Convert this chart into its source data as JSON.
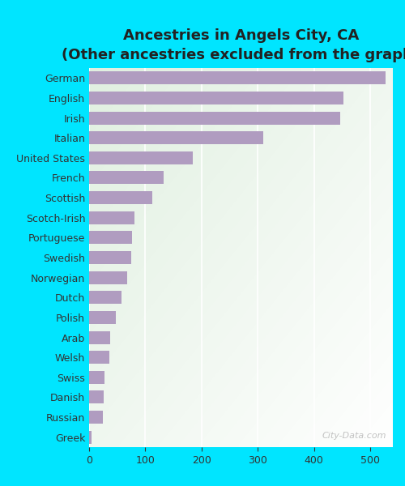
{
  "title_line1": "Ancestries in Angels City, CA",
  "title_line2": "(Other ancestries excluded from the graph)",
  "categories": [
    "German",
    "English",
    "Irish",
    "Italian",
    "United States",
    "French",
    "Scottish",
    "Scotch-Irish",
    "Portuguese",
    "Swedish",
    "Norwegian",
    "Dutch",
    "Polish",
    "Arab",
    "Welsh",
    "Swiss",
    "Danish",
    "Russian",
    "Greek"
  ],
  "values": [
    527,
    452,
    447,
    310,
    185,
    133,
    112,
    80,
    76,
    75,
    68,
    58,
    47,
    37,
    36,
    28,
    26,
    24,
    5
  ],
  "bar_color": "#b09cc0",
  "background_fig": "#00e5ff",
  "xlim": [
    0,
    540
  ],
  "xticks": [
    0,
    100,
    200,
    300,
    400,
    500
  ],
  "watermark": "City-Data.com",
  "title_fontsize": 13,
  "subtitle_fontsize": 11,
  "tick_fontsize": 9,
  "bar_height": 0.65
}
